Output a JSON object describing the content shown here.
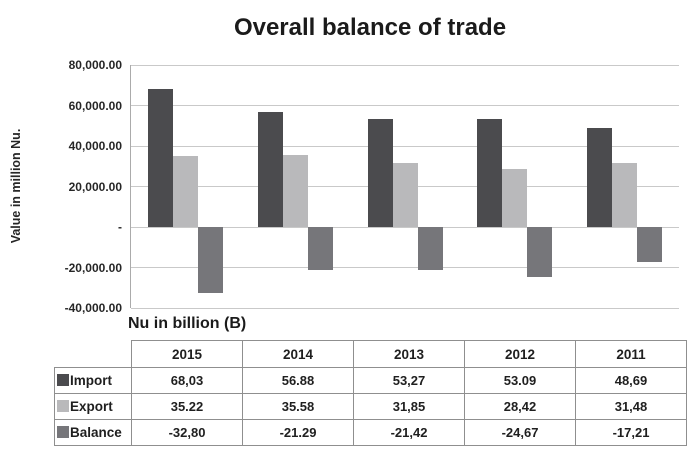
{
  "chart_data": {
    "type": "bar",
    "title": "Overall balance of trade",
    "ylabel": "Value in million Nu.",
    "categories": [
      "2015",
      "2014",
      "2013",
      "2012",
      "2011"
    ],
    "series": [
      {
        "name": "Import",
        "color": "#4b4b4e",
        "values_million": [
          68030,
          56880,
          53270,
          53090,
          48690
        ]
      },
      {
        "name": "Export",
        "color": "#b9b9bb",
        "values_million": [
          35220,
          35580,
          31850,
          28420,
          31480
        ]
      },
      {
        "name": "Balance",
        "color": "#76767a",
        "values_million": [
          -32800,
          -21290,
          -21420,
          -24670,
          -17210
        ]
      }
    ],
    "ylim": [
      -40000,
      80000
    ],
    "y_tick_step": 20000,
    "grid": true,
    "legend_position": "table-row-labels",
    "y_ticks": [
      {
        "value": 80000,
        "label": "80,000.00"
      },
      {
        "value": 60000,
        "label": "60,000.00"
      },
      {
        "value": 40000,
        "label": "40,000.00"
      },
      {
        "value": 20000,
        "label": "20,000.00"
      },
      {
        "value": 0,
        "label": "-"
      },
      {
        "value": -20000,
        "label": "-20,000.00"
      },
      {
        "value": -40000,
        "label": "-40,000.00"
      }
    ]
  },
  "table": {
    "caption": "Nu in billion (B)",
    "columns": [
      "2015",
      "2014",
      "2013",
      "2012",
      "2011"
    ],
    "rows": [
      {
        "label": "Import",
        "swatch_color": "#4b4b4e",
        "cells": [
          "68,03",
          "56.88",
          "53,27",
          "53.09",
          "48,69"
        ]
      },
      {
        "label": "Export",
        "swatch_color": "#b9b9bb",
        "cells": [
          "35.22",
          "35.58",
          "31,85",
          "28,42",
          "31,48"
        ]
      },
      {
        "label": "Balance",
        "swatch_color": "#76767a",
        "cells": [
          "-32,80",
          "-21.29",
          "-21,42",
          "-24,67",
          "-17,21"
        ]
      }
    ]
  }
}
